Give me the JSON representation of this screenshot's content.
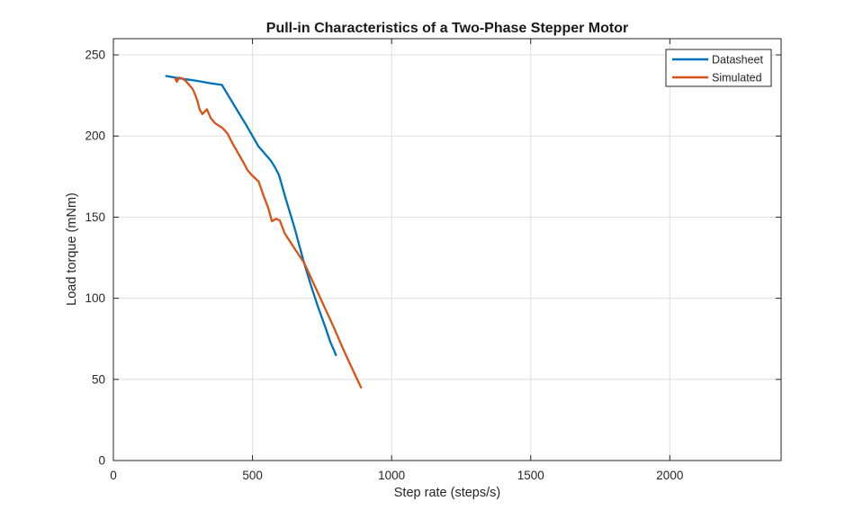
{
  "figure": {
    "background": "#ffffff"
  },
  "colors": {
    "axis": "#262626",
    "grid": "#dfdfdf",
    "legend_border": "#262626",
    "legend_background": "#ffffff",
    "datasheet_line": "#0072BD",
    "simulated_line": "#D95319"
  },
  "chart_data": {
    "type": "line",
    "title": "Pull-in Characteristics of a Two-Phase Stepper Motor",
    "xlabel": "Step rate (steps/s)",
    "ylabel": "Load torque (mNm)",
    "xlim": [
      0,
      2400
    ],
    "ylim": [
      0,
      260
    ],
    "xticks": [
      0,
      500,
      1000,
      1500,
      2000
    ],
    "yticks": [
      0,
      50,
      100,
      150,
      200,
      250
    ],
    "grid": true,
    "legend_position": "northeast",
    "series": [
      {
        "name": "Datasheet",
        "color": "#0072BD",
        "points": [
          [
            190,
            237
          ],
          [
            240,
            235.5
          ],
          [
            300,
            234
          ],
          [
            350,
            232.5
          ],
          [
            390,
            231.5
          ],
          [
            420,
            223
          ],
          [
            450,
            214.5
          ],
          [
            480,
            206
          ],
          [
            500,
            200
          ],
          [
            520,
            194
          ],
          [
            545,
            189
          ],
          [
            565,
            185
          ],
          [
            580,
            181
          ],
          [
            595,
            176
          ],
          [
            620,
            161
          ],
          [
            650,
            144
          ],
          [
            685,
            122
          ],
          [
            710,
            108
          ],
          [
            735,
            95
          ],
          [
            760,
            83
          ],
          [
            780,
            73
          ],
          [
            795,
            67
          ],
          [
            800,
            65
          ]
        ]
      },
      {
        "name": "Simulated",
        "color": "#D95319",
        "points": [
          [
            222,
            235.5
          ],
          [
            228,
            233.5
          ],
          [
            237,
            236
          ],
          [
            248,
            235.5
          ],
          [
            260,
            234
          ],
          [
            272,
            231.5
          ],
          [
            285,
            229
          ],
          [
            295,
            225
          ],
          [
            303,
            221
          ],
          [
            310,
            216.5
          ],
          [
            320,
            213.5
          ],
          [
            336,
            216.5
          ],
          [
            350,
            211
          ],
          [
            365,
            208
          ],
          [
            378,
            206.5
          ],
          [
            392,
            205
          ],
          [
            410,
            201.5
          ],
          [
            430,
            195
          ],
          [
            450,
            189
          ],
          [
            468,
            183.5
          ],
          [
            482,
            179
          ],
          [
            497,
            176
          ],
          [
            512,
            173.5
          ],
          [
            522,
            172
          ],
          [
            540,
            163
          ],
          [
            556,
            156
          ],
          [
            570,
            147.5
          ],
          [
            585,
            149
          ],
          [
            598,
            148
          ],
          [
            616,
            140
          ],
          [
            650,
            131
          ],
          [
            685,
            122
          ],
          [
            720,
            109
          ],
          [
            755,
            96
          ],
          [
            790,
            83
          ],
          [
            825,
            69
          ],
          [
            860,
            56
          ],
          [
            890,
            45
          ]
        ]
      }
    ]
  }
}
